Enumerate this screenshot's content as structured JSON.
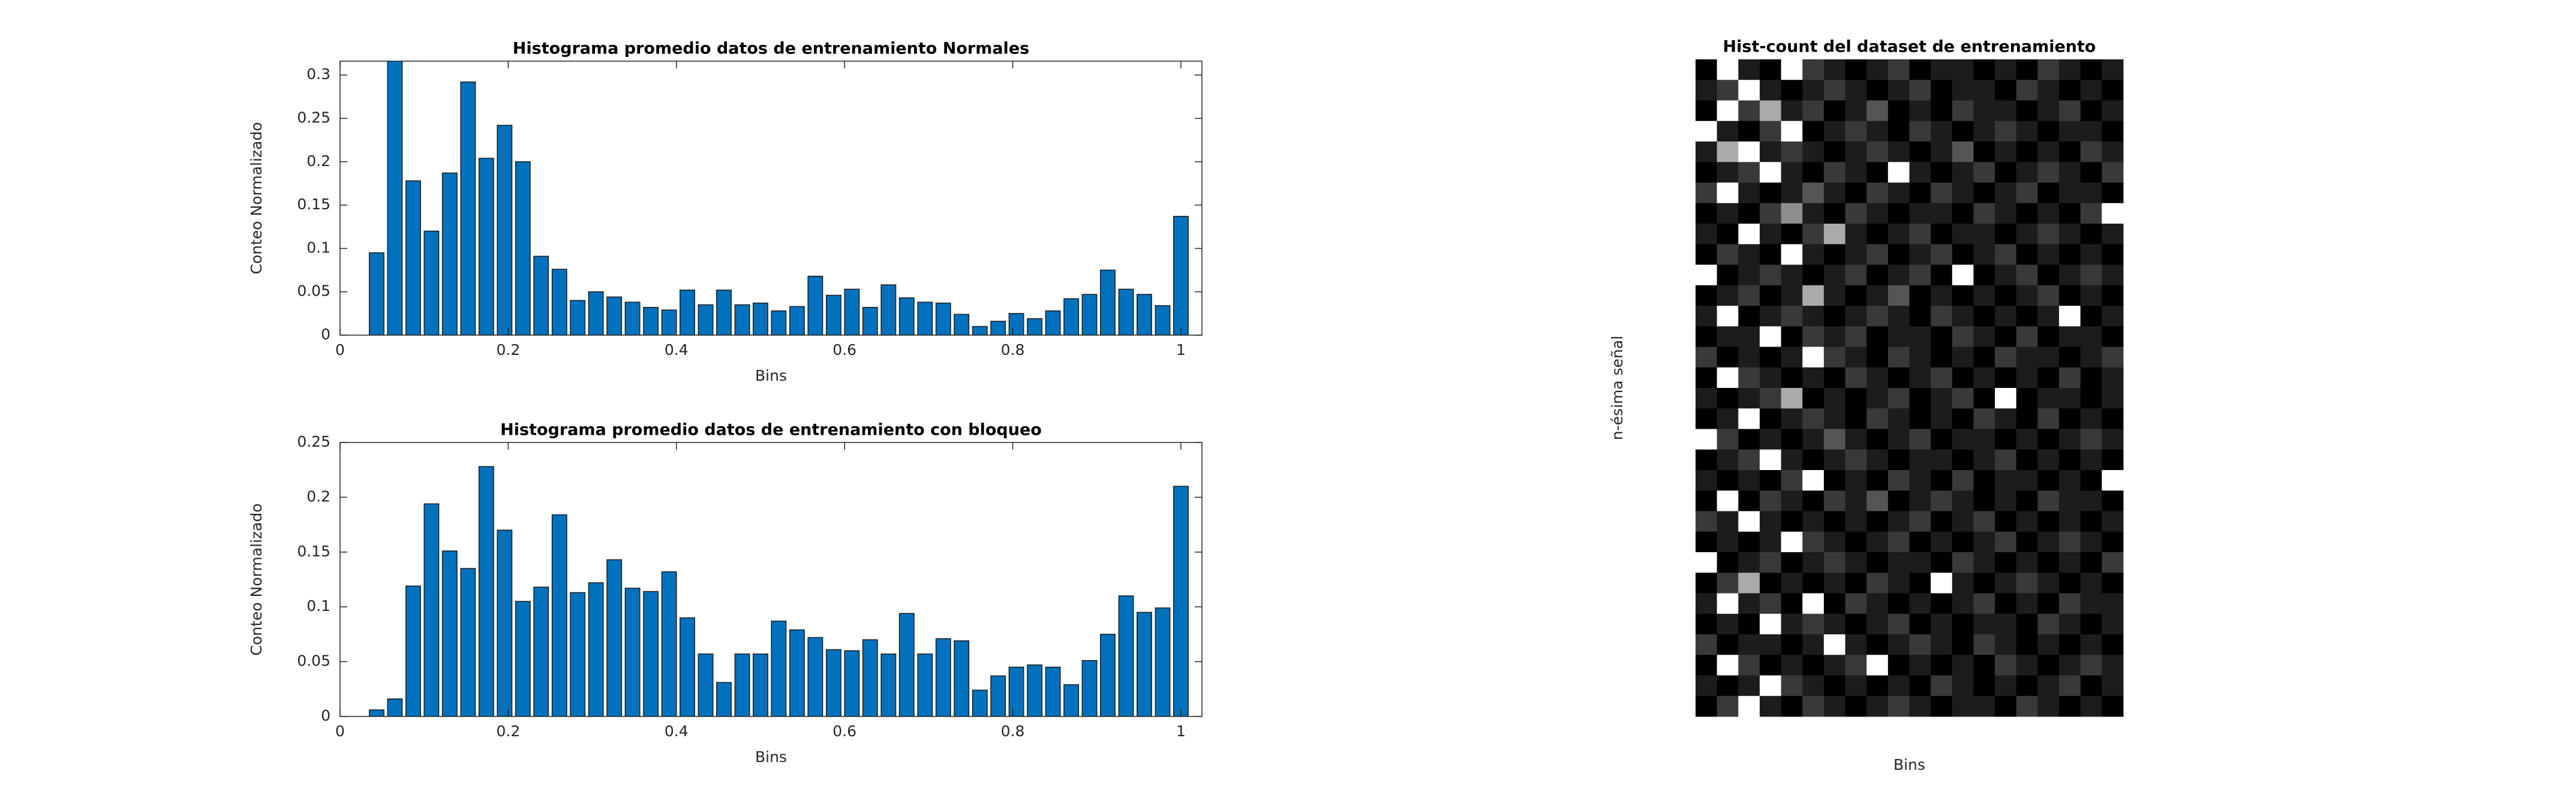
{
  "chart_data": [
    {
      "type": "bar",
      "title": "Histograma promedio datos de entrenamiento Normales",
      "xlabel": "Bins",
      "ylabel": "Conteo Normalizado",
      "color": "#0072bd",
      "x": [
        0.0435,
        0.0652,
        0.087,
        0.1087,
        0.1304,
        0.1522,
        0.1739,
        0.1957,
        0.2174,
        0.2391,
        0.2609,
        0.2826,
        0.3043,
        0.3261,
        0.3478,
        0.3696,
        0.3913,
        0.413,
        0.4348,
        0.4565,
        0.4783,
        0.5,
        0.5217,
        0.5435,
        0.5652,
        0.587,
        0.6087,
        0.6304,
        0.6522,
        0.6739,
        0.6957,
        0.7174,
        0.7391,
        0.7609,
        0.7826,
        0.8043,
        0.8261,
        0.8478,
        0.8696,
        0.8913,
        0.913,
        0.9348,
        0.9565,
        0.9783,
        1
      ],
      "values": [
        0.095,
        0.32,
        0.178,
        0.12,
        0.187,
        0.292,
        0.204,
        0.242,
        0.2,
        0.091,
        0.076,
        0.04,
        0.05,
        0.044,
        0.038,
        0.032,
        0.029,
        0.052,
        0.035,
        0.052,
        0.035,
        0.037,
        0.028,
        0.033,
        0.068,
        0.046,
        0.053,
        0.032,
        0.058,
        0.043,
        0.038,
        0.037,
        0.024,
        0.01,
        0.016,
        0.025,
        0.019,
        0.028,
        0.042,
        0.047,
        0.075,
        0.053,
        0.047,
        0.034,
        0.137
      ],
      "xlim": [
        0,
        1.025
      ],
      "xticks": [
        0,
        0.2,
        0.4,
        0.6,
        0.8,
        1
      ],
      "ylim": [
        0,
        0.316
      ],
      "yticks": [
        0,
        0.05,
        0.1,
        0.15,
        0.2,
        0.25,
        0.3
      ]
    },
    {
      "type": "bar",
      "title": "Histograma promedio datos de entrenamiento con bloqueo",
      "xlabel": "Bins",
      "ylabel": "Conteo Normalizado",
      "color": "#0072bd",
      "x": [
        0.0435,
        0.0652,
        0.087,
        0.1087,
        0.1304,
        0.1522,
        0.1739,
        0.1957,
        0.2174,
        0.2391,
        0.2609,
        0.2826,
        0.3043,
        0.3261,
        0.3478,
        0.3696,
        0.3913,
        0.413,
        0.4348,
        0.4565,
        0.4783,
        0.5,
        0.5217,
        0.5435,
        0.5652,
        0.587,
        0.6087,
        0.6304,
        0.6522,
        0.6739,
        0.6957,
        0.7174,
        0.7391,
        0.7609,
        0.7826,
        0.8043,
        0.8261,
        0.8478,
        0.8696,
        0.8913,
        0.913,
        0.9348,
        0.9565,
        0.9783,
        1
      ],
      "values": [
        0.006,
        0.016,
        0.119,
        0.194,
        0.151,
        0.135,
        0.228,
        0.17,
        0.105,
        0.118,
        0.184,
        0.113,
        0.122,
        0.143,
        0.117,
        0.114,
        0.132,
        0.09,
        0.057,
        0.031,
        0.057,
        0.057,
        0.087,
        0.079,
        0.072,
        0.061,
        0.06,
        0.07,
        0.057,
        0.094,
        0.057,
        0.071,
        0.069,
        0.024,
        0.037,
        0.045,
        0.047,
        0.045,
        0.029,
        0.051,
        0.075,
        0.11,
        0.095,
        0.099,
        0.21
      ],
      "xlim": [
        0,
        1.025
      ],
      "xticks": [
        0,
        0.2,
        0.4,
        0.6,
        0.8,
        1
      ],
      "ylim": [
        0,
        0.25
      ],
      "yticks": [
        0,
        0.05,
        0.1,
        0.15,
        0.2,
        0.25
      ]
    },
    {
      "type": "heatmap",
      "title": "Hist-count del dataset de entrenamiento",
      "xlabel": "Bins",
      "ylabel": "n-ésima señal",
      "colormap": "gray",
      "zlim": [
        0,
        9
      ],
      "z": [
        [
          0,
          9,
          1,
          0,
          9,
          2,
          1,
          0,
          1,
          2,
          0,
          1,
          1,
          0,
          1,
          0,
          2,
          1,
          0,
          1
        ],
        [
          1,
          2,
          9,
          1,
          0,
          1,
          2,
          1,
          0,
          1,
          2,
          0,
          1,
          1,
          0,
          2,
          1,
          0,
          1,
          0
        ],
        [
          0,
          9,
          2,
          6,
          1,
          2,
          0,
          1,
          3,
          0,
          1,
          0,
          2,
          1,
          1,
          0,
          1,
          2,
          0,
          1
        ],
        [
          9,
          1,
          0,
          2,
          9,
          0,
          1,
          2,
          1,
          0,
          2,
          1,
          0,
          1,
          2,
          1,
          0,
          1,
          1,
          0
        ],
        [
          1,
          6,
          9,
          1,
          2,
          1,
          0,
          1,
          2,
          1,
          0,
          1,
          3,
          0,
          1,
          0,
          1,
          0,
          2,
          1
        ],
        [
          0,
          1,
          2,
          9,
          1,
          0,
          2,
          1,
          0,
          9,
          1,
          0,
          1,
          2,
          0,
          1,
          2,
          1,
          0,
          2
        ],
        [
          2,
          9,
          1,
          0,
          1,
          3,
          1,
          0,
          2,
          1,
          0,
          2,
          1,
          0,
          1,
          2,
          0,
          1,
          1,
          0
        ],
        [
          0,
          1,
          0,
          2,
          5,
          1,
          0,
          2,
          1,
          0,
          1,
          1,
          0,
          2,
          1,
          0,
          1,
          0,
          2,
          9
        ],
        [
          1,
          0,
          9,
          1,
          0,
          2,
          6,
          1,
          0,
          1,
          2,
          0,
          1,
          1,
          0,
          1,
          2,
          1,
          0,
          1
        ],
        [
          0,
          2,
          1,
          0,
          9,
          1,
          0,
          1,
          2,
          0,
          1,
          2,
          0,
          1,
          2,
          0,
          1,
          0,
          1,
          0
        ],
        [
          9,
          0,
          1,
          2,
          1,
          0,
          1,
          2,
          0,
          1,
          2,
          0,
          9,
          0,
          1,
          2,
          0,
          1,
          2,
          1
        ],
        [
          0,
          1,
          2,
          0,
          1,
          6,
          1,
          0,
          1,
          3,
          0,
          1,
          0,
          1,
          0,
          1,
          2,
          0,
          1,
          0
        ],
        [
          1,
          9,
          0,
          1,
          2,
          1,
          0,
          1,
          2,
          1,
          0,
          2,
          1,
          0,
          1,
          0,
          1,
          9,
          0,
          1
        ],
        [
          0,
          1,
          1,
          9,
          0,
          2,
          1,
          2,
          0,
          1,
          1,
          0,
          2,
          1,
          0,
          2,
          0,
          1,
          1,
          0
        ],
        [
          2,
          0,
          1,
          0,
          1,
          9,
          2,
          1,
          0,
          2,
          1,
          0,
          1,
          0,
          2,
          1,
          1,
          0,
          1,
          2
        ],
        [
          0,
          9,
          2,
          1,
          0,
          1,
          0,
          2,
          1,
          0,
          1,
          2,
          0,
          1,
          0,
          1,
          0,
          2,
          0,
          1
        ],
        [
          1,
          0,
          1,
          2,
          6,
          0,
          1,
          0,
          1,
          2,
          0,
          1,
          2,
          0,
          9,
          0,
          1,
          1,
          0,
          1
        ],
        [
          0,
          1,
          9,
          0,
          1,
          2,
          1,
          0,
          2,
          1,
          0,
          1,
          0,
          2,
          1,
          0,
          2,
          0,
          1,
          0
        ],
        [
          9,
          2,
          0,
          1,
          0,
          1,
          3,
          1,
          0,
          1,
          2,
          0,
          1,
          1,
          0,
          1,
          0,
          1,
          2,
          1
        ],
        [
          0,
          1,
          2,
          9,
          1,
          0,
          1,
          2,
          1,
          0,
          1,
          1,
          0,
          1,
          2,
          0,
          1,
          0,
          1,
          0
        ],
        [
          1,
          0,
          1,
          0,
          2,
          9,
          0,
          1,
          0,
          2,
          1,
          0,
          2,
          0,
          1,
          1,
          0,
          1,
          0,
          9
        ],
        [
          0,
          9,
          0,
          2,
          1,
          0,
          2,
          1,
          3,
          0,
          1,
          2,
          1,
          0,
          1,
          0,
          2,
          1,
          1,
          0
        ],
        [
          2,
          1,
          9,
          1,
          0,
          1,
          0,
          1,
          0,
          1,
          2,
          0,
          1,
          2,
          0,
          1,
          0,
          1,
          0,
          1
        ],
        [
          0,
          1,
          0,
          1,
          9,
          2,
          1,
          0,
          1,
          2,
          0,
          1,
          0,
          1,
          2,
          0,
          1,
          2,
          1,
          0
        ],
        [
          9,
          0,
          1,
          2,
          0,
          1,
          2,
          1,
          0,
          1,
          1,
          0,
          2,
          1,
          0,
          1,
          0,
          1,
          0,
          2
        ],
        [
          0,
          2,
          6,
          0,
          1,
          0,
          1,
          0,
          2,
          1,
          0,
          9,
          1,
          0,
          1,
          2,
          1,
          0,
          1,
          0
        ],
        [
          1,
          9,
          1,
          2,
          0,
          9,
          0,
          2,
          1,
          0,
          1,
          0,
          1,
          2,
          0,
          1,
          0,
          2,
          1,
          1
        ],
        [
          0,
          1,
          0,
          9,
          1,
          2,
          1,
          0,
          1,
          2,
          0,
          1,
          0,
          1,
          1,
          0,
          2,
          1,
          0,
          1
        ],
        [
          2,
          0,
          1,
          1,
          0,
          1,
          9,
          1,
          0,
          1,
          2,
          1,
          0,
          2,
          1,
          0,
          1,
          0,
          1,
          0
        ],
        [
          0,
          9,
          2,
          0,
          1,
          0,
          1,
          2,
          9,
          0,
          1,
          0,
          1,
          0,
          2,
          1,
          0,
          1,
          2,
          1
        ],
        [
          1,
          0,
          1,
          9,
          2,
          1,
          0,
          1,
          0,
          1,
          0,
          2,
          1,
          0,
          1,
          0,
          1,
          2,
          0,
          1
        ],
        [
          0,
          2,
          9,
          1,
          0,
          2,
          1,
          0,
          1,
          2,
          1,
          0,
          1,
          1,
          0,
          2,
          1,
          0,
          1,
          0
        ]
      ]
    }
  ]
}
